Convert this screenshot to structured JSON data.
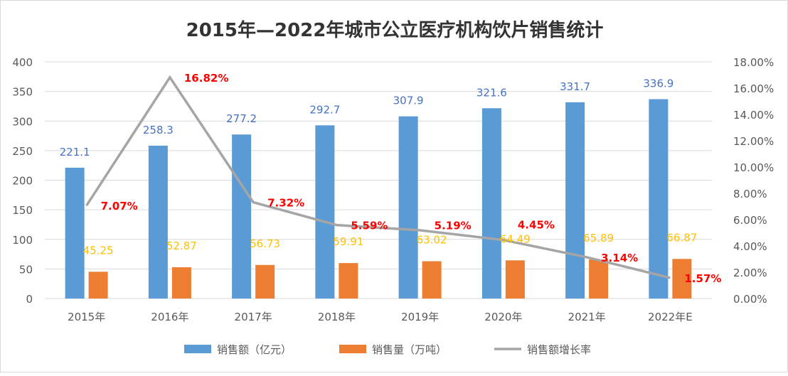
{
  "chart_data": {
    "type": "bar",
    "title": "2015年—2022年城市公立医疗机构饮片销售统计",
    "categories": [
      "2015年",
      "2016年",
      "2017年",
      "2018年",
      "2019年",
      "2020年",
      "2021年",
      "2022年E"
    ],
    "series": [
      {
        "name": "销售额（亿元）",
        "type": "bar",
        "axis": "left",
        "color": "#5b9bd5",
        "labelColor": "#4472c4",
        "values": [
          221.1,
          258.3,
          277.2,
          292.7,
          307.9,
          321.6,
          331.7,
          336.9
        ],
        "labels": [
          "221.1",
          "258.3",
          "277.2",
          "292.7",
          "307.9",
          "321.6",
          "331.7",
          "336.9"
        ]
      },
      {
        "name": "销售量（万吨）",
        "type": "bar",
        "axis": "left",
        "color": "#ed7d31",
        "labelColor": "#ffc000",
        "values": [
          45.25,
          52.87,
          56.73,
          59.91,
          63.02,
          64.49,
          65.89,
          66.87
        ],
        "labels": [
          "45.25",
          "52.87",
          "56.73",
          "59.91",
          "63.02",
          "64.49",
          "65.89",
          "66.87"
        ]
      },
      {
        "name": "销售额增长率",
        "type": "line",
        "axis": "right",
        "color": "#a5a5a5",
        "labelColor": "#ff0000",
        "values": [
          7.07,
          16.82,
          7.32,
          5.59,
          5.19,
          4.45,
          3.14,
          1.57
        ],
        "labels": [
          "7.07%",
          "16.82%",
          "7.32%",
          "5.59%",
          "5.19%",
          "4.45%",
          "3.14%",
          "1.57%"
        ]
      }
    ],
    "y_left": {
      "range": [
        0,
        400
      ],
      "ticks": [
        "0",
        "50",
        "100",
        "150",
        "200",
        "250",
        "300",
        "350",
        "400"
      ]
    },
    "y_right": {
      "range": [
        0,
        18
      ],
      "ticks": [
        "0.00%",
        "2.00%",
        "4.00%",
        "6.00%",
        "8.00%",
        "10.00%",
        "12.00%",
        "14.00%",
        "16.00%",
        "18.00%"
      ]
    },
    "grid": true,
    "legend": "bottom"
  }
}
